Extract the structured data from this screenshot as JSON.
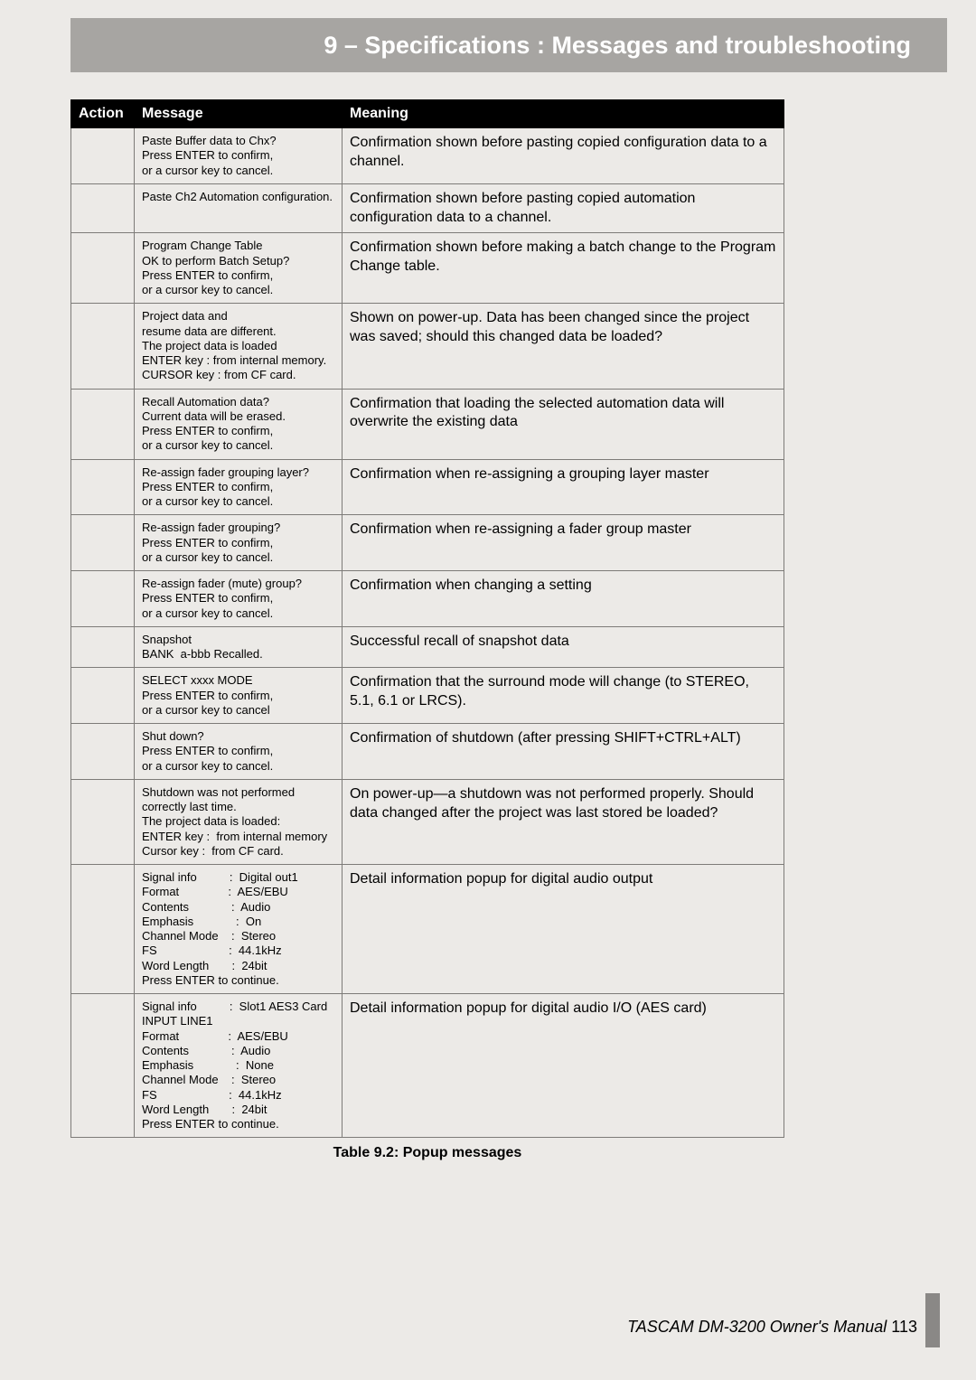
{
  "header": {
    "title": "9 – Specifications : Messages and troubleshooting"
  },
  "table": {
    "columns": [
      "Action",
      "Message",
      "Meaning"
    ],
    "rows": [
      {
        "action": "",
        "message": "Paste Buffer data to Chx?\nPress ENTER to confirm,\nor a cursor key to cancel.",
        "meaning": "Confirmation shown before pasting copied configuration data to a channel."
      },
      {
        "action": "",
        "message": "Paste Ch2 Automation configuration.",
        "meaning": "Confirmation shown before pasting copied automation configuration data to a channel."
      },
      {
        "action": "",
        "message": "Program Change Table\nOK to perform Batch Setup?\nPress ENTER to confirm,\nor a cursor key to cancel.",
        "meaning": "Confirmation shown before making a batch change to the Program Change table."
      },
      {
        "action": "",
        "message": "Project data and\nresume data are different.\nThe project data is loaded\nENTER key : from internal memory.\nCURSOR key : from CF card.",
        "meaning": "Shown on power-up. Data has been changed since the project was saved; should this changed data be loaded?"
      },
      {
        "action": "",
        "message": "Recall Automation data?\nCurrent data will be erased.\nPress ENTER to confirm,\nor a cursor key to cancel.",
        "meaning": "Confirmation that loading the selected automation data will overwrite the existing data"
      },
      {
        "action": "",
        "message": "Re-assign fader grouping layer?\nPress ENTER to confirm,\nor a cursor key to cancel.",
        "meaning": "Confirmation when re-assigning a grouping layer master"
      },
      {
        "action": "",
        "message": "Re-assign fader grouping?\nPress ENTER to confirm,\nor a cursor key to cancel.",
        "meaning": "Confirmation when re-assigning a fader group master"
      },
      {
        "action": "",
        "message": "Re-assign fader (mute) group?\nPress ENTER to confirm,\nor a cursor key to cancel.",
        "meaning": "Confirmation when changing a setting"
      },
      {
        "action": "",
        "message": "Snapshot\nBANK  a-bbb Recalled.",
        "meaning": "Successful recall of snapshot data"
      },
      {
        "action": "",
        "message": "SELECT xxxx MODE\nPress ENTER to confirm,\nor a cursor key to cancel",
        "meaning": "Confirmation that the surround mode will change (to STEREO, 5.1, 6.1 or LRCS)."
      },
      {
        "action": "",
        "message": "Shut down?\nPress ENTER to confirm,\nor a cursor key to cancel.",
        "meaning": "Confirmation of shutdown (after pressing SHIFT+CTRL+ALT)"
      },
      {
        "action": "",
        "message": "Shutdown was not performed\ncorrectly last time.\nThe project data is loaded:\nENTER key :  from internal memory\nCursor key :  from CF card.",
        "meaning": "On power-up—a shutdown was not performed properly. Should data changed after the project was last stored be loaded?"
      },
      {
        "action": "",
        "message": "Signal info          :  Digital out1\nFormat               :  AES/EBU\nContents             :  Audio\nEmphasis             :  On\nChannel Mode    :  Stereo\nFS                      :  44.1kHz\nWord Length       :  24bit\nPress ENTER to continue.",
        "meaning": "Detail information popup for digital audio output"
      },
      {
        "action": "",
        "message": "Signal info          :  Slot1 AES3 Card\nINPUT LINE1\nFormat               :  AES/EBU\nContents             :  Audio\nEmphasis             :  None\nChannel Mode    :  Stereo\nFS                      :  44.1kHz\nWord Length       :  24bit\nPress ENTER to continue.",
        "meaning": "Detail information popup for digital audio I/O (AES card)"
      }
    ]
  },
  "caption": "Table 9.2: Popup messages",
  "footer": {
    "text": "TASCAM DM-3200 Owner's Manual",
    "page": "113"
  }
}
